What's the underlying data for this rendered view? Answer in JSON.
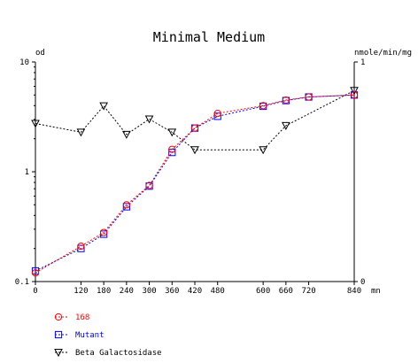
{
  "chart_data": {
    "type": "line",
    "title": "Minimal Medium",
    "y_left_unit": "od",
    "y_right_unit": "nmole/min/mg",
    "x_unit": "mn",
    "x_ticks": [
      0,
      120,
      180,
      240,
      300,
      360,
      420,
      480,
      600,
      660,
      720,
      840
    ],
    "xlim": [
      0,
      840
    ],
    "y_left_scale": "log",
    "y_left_ticks": [
      "0.1",
      "1",
      "10"
    ],
    "ylim_left": [
      0.1,
      10
    ],
    "y_right_ticks": [
      "0",
      "1"
    ],
    "ylim_right": [
      0,
      1
    ],
    "grid": false,
    "legend_position": "bottom-left",
    "series": [
      {
        "name": "168",
        "axis": "left",
        "marker": "circle",
        "color": "#ff0000",
        "x": [
          0,
          120,
          180,
          240,
          300,
          360,
          420,
          480,
          600,
          660,
          720,
          840
        ],
        "y": [
          0.12,
          0.21,
          0.28,
          0.5,
          0.75,
          1.6,
          2.5,
          3.4,
          4.0,
          4.5,
          4.8,
          5.0
        ]
      },
      {
        "name": "Mutant",
        "axis": "left",
        "marker": "square",
        "color": "#0000ff",
        "x": [
          0,
          120,
          180,
          240,
          300,
          360,
          420,
          480,
          600,
          660,
          720,
          840
        ],
        "y": [
          0.125,
          0.2,
          0.27,
          0.48,
          0.74,
          1.5,
          2.5,
          3.2,
          3.95,
          4.45,
          4.8,
          5.0
        ]
      },
      {
        "name": "Beta Galactosidase",
        "axis": "right",
        "marker": "triangle-down",
        "color": "#000000",
        "x": [
          0,
          120,
          180,
          240,
          300,
          360,
          420,
          600,
          660,
          840
        ],
        "y": [
          0.72,
          0.68,
          0.8,
          0.67,
          0.74,
          0.68,
          0.6,
          0.6,
          0.71,
          0.87
        ]
      }
    ]
  }
}
